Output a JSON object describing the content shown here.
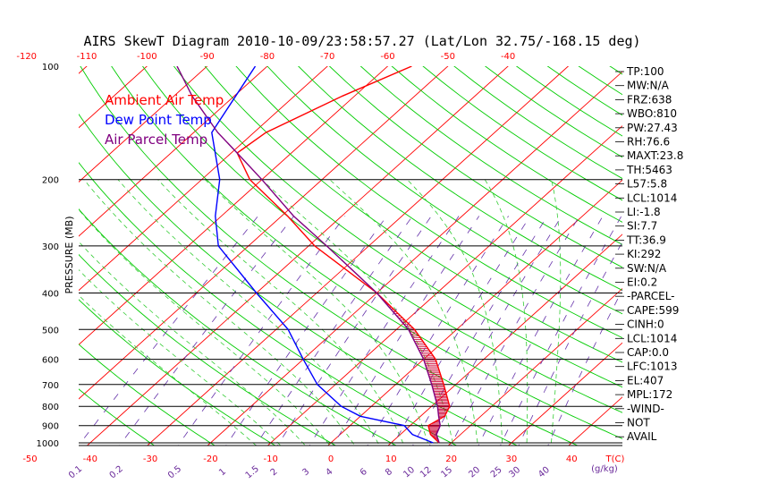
{
  "chart_data": {
    "type": "line",
    "title": "AIRS SkewT Diagram 2010-10-09/23:58:57.27 (Lat/Lon 32.75/-168.15 deg)",
    "ylabel": "PRESSURE (MB)",
    "pressure_ticks": [
      100,
      200,
      300,
      400,
      500,
      600,
      700,
      800,
      900,
      1000
    ],
    "top_temp_ticks": [
      -120,
      -110,
      -100,
      -90,
      -80,
      -70,
      -60,
      -50,
      -40
    ],
    "bottom_temp_ticks": [
      -50,
      -40,
      -30,
      -20,
      -10,
      0,
      10,
      20,
      30,
      40
    ],
    "bottom_temp_unit": "T(C)",
    "mixing_ratio_ticks": [
      "0.1",
      "0.2",
      "0.5",
      "1",
      "1.5",
      "2",
      "3",
      "4",
      "6",
      "8",
      "10",
      "12",
      "15",
      "20",
      "25",
      "30",
      "40"
    ],
    "mixing_ratio_unit": "(g/kg)",
    "legend": [
      {
        "label": "Ambient Air Temp",
        "color": "#ff0000"
      },
      {
        "label": "Dew Point Temp",
        "color": "#0000ff"
      },
      {
        "label": "Air Parcel Temp",
        "color": "#800080"
      }
    ],
    "series": [
      {
        "name": "Ambient Air Temp",
        "color": "#ff0000",
        "points": [
          [
            1000,
            18
          ],
          [
            950,
            15
          ],
          [
            900,
            13
          ],
          [
            850,
            14
          ],
          [
            800,
            13
          ],
          [
            700,
            8
          ],
          [
            600,
            2
          ],
          [
            500,
            -7
          ],
          [
            400,
            -20
          ],
          [
            300,
            -39
          ],
          [
            250,
            -49
          ],
          [
            200,
            -62
          ],
          [
            170,
            -69
          ],
          [
            150,
            -68
          ],
          [
            120,
            -62
          ],
          [
            100,
            -56
          ]
        ]
      },
      {
        "name": "Dew Point Temp",
        "color": "#0000ff",
        "points": [
          [
            1000,
            17
          ],
          [
            950,
            12
          ],
          [
            900,
            9
          ],
          [
            850,
            0
          ],
          [
            800,
            -5
          ],
          [
            700,
            -13
          ],
          [
            600,
            -20
          ],
          [
            500,
            -28
          ],
          [
            400,
            -40
          ],
          [
            300,
            -55
          ],
          [
            250,
            -61
          ],
          [
            200,
            -67
          ],
          [
            150,
            -77
          ],
          [
            100,
            -82
          ]
        ]
      },
      {
        "name": "Air Parcel Temp",
        "color": "#800080",
        "points": [
          [
            1000,
            18
          ],
          [
            950,
            16
          ],
          [
            900,
            15
          ],
          [
            850,
            13
          ],
          [
            800,
            11
          ],
          [
            700,
            6
          ],
          [
            600,
            0
          ],
          [
            500,
            -8
          ],
          [
            400,
            -20
          ],
          [
            300,
            -37
          ],
          [
            250,
            -48
          ],
          [
            200,
            -60
          ],
          [
            170,
            -69
          ],
          [
            150,
            -76
          ],
          [
            120,
            -87
          ],
          [
            100,
            -95
          ]
        ]
      }
    ],
    "indices": [
      "TP:100",
      "MW:N/A",
      "FRZ:638",
      "WBO:810",
      "PW:27.43",
      "RH:76.6",
      "MAXT:23.8",
      "TH:5463",
      "L57:5.8",
      "LCL:1014",
      "LI:-1.8",
      "SI:7.7",
      "TT:36.9",
      "KI:292",
      "SW:N/A",
      "EI:0.2",
      "-PARCEL-",
      "CAPE:599",
      "CINH:0",
      "LCL:1014",
      "CAP:0.0",
      "LFC:1013",
      "EL:407",
      "MPL:172",
      "-WIND-",
      "NOT",
      "AVAIL"
    ],
    "grid": true
  }
}
